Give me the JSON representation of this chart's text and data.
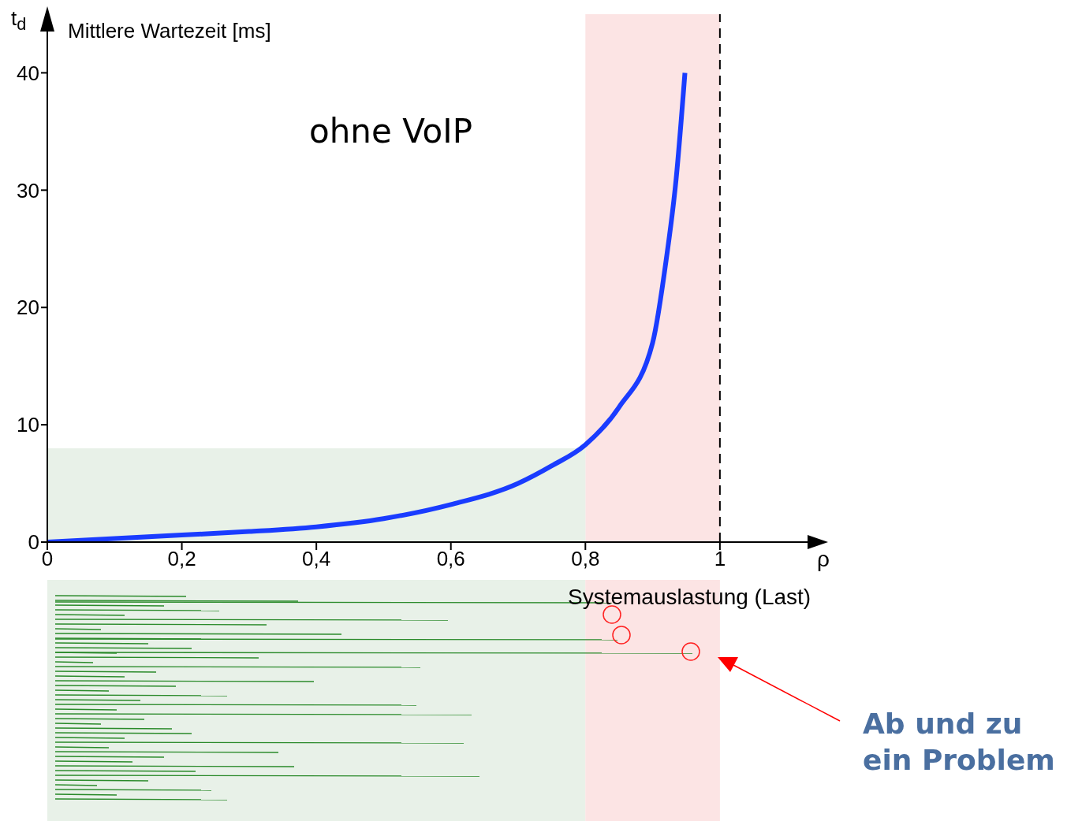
{
  "chart_data": {
    "type": "line",
    "ylabel": "t$_{d}$",
    "xlabel": "ρ",
    "annotations": [
      "Mittlere Wartezeit [ms]",
      "ohne VoIP",
      "Systemauslastung (Last)",
      "Ab und zu ein Problem"
    ],
    "x": [
      0,
      0.1,
      0.2,
      0.3,
      0.4,
      0.5,
      0.6,
      0.7,
      0.75,
      0.8,
      0.85,
      0.9,
      0.92,
      0.935,
      0.948
    ],
    "series": [
      {
        "color": "#1a3cff",
        "values": [
          0,
          0.3,
          0.6,
          0.9,
          1.3,
          2.0,
          3.2,
          5.0,
          6.5,
          8.3,
          11.5,
          17,
          24,
          31,
          40
        ]
      }
    ],
    "xlim": [
      0,
      1.135
    ],
    "ylim": [
      0,
      45
    ],
    "xticks": [
      0,
      {
        "value": 0.2,
        "label": "0,2"
      },
      {
        "value": 0.4,
        "label": "0,4"
      },
      {
        "value": 0.6,
        "label": "0,6"
      },
      {
        "value": 0.8,
        "label": "0,8"
      },
      1
    ],
    "yticks": [
      0,
      10,
      20,
      30,
      40
    ],
    "bands": [
      {
        "axis": "x",
        "from": 0.8,
        "to": 1,
        "color": "#fce4e4"
      },
      {
        "axis": "y",
        "from": 0,
        "to": 8,
        "color": "#e8f1e8"
      }
    ],
    "ref_lines": [
      {
        "axis": "x",
        "value": 1,
        "color": "#000000",
        "line_style": "dashed"
      }
    ]
  }
}
